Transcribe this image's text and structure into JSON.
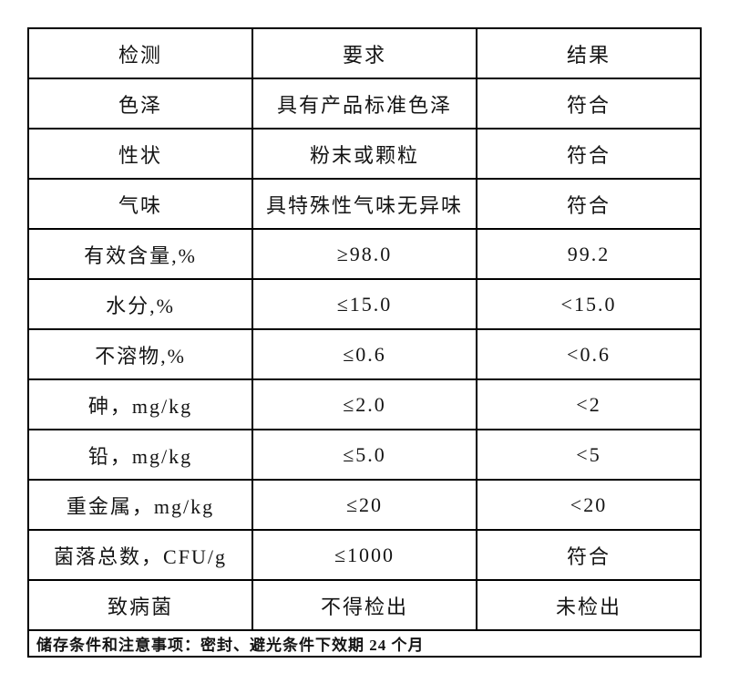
{
  "table": {
    "headers": [
      "检测",
      "要求",
      "结果"
    ],
    "rows": [
      {
        "test": "色泽",
        "requirement": "具有产品标准色泽",
        "result": "符合"
      },
      {
        "test": "性状",
        "requirement": "粉末或颗粒",
        "result": "符合"
      },
      {
        "test": "气味",
        "requirement": "具特殊性气味无异味",
        "result": "符合"
      },
      {
        "test": "有效含量,%",
        "requirement": "≥98.0",
        "result": "99.2"
      },
      {
        "test": "水分,%",
        "requirement": "≤15.0",
        "result": "<15.0"
      },
      {
        "test": "不溶物,%",
        "requirement": "≤0.6",
        "result": "<0.6"
      },
      {
        "test": "砷，mg/kg",
        "requirement": "≤2.0",
        "result": "<2"
      },
      {
        "test": "铅，mg/kg",
        "requirement": "≤5.0",
        "result": "<5"
      },
      {
        "test": "重金属，mg/kg",
        "requirement": "≤20",
        "result": "<20"
      },
      {
        "test": "菌落总数，CFU/g",
        "requirement": "≤1000",
        "result": "符合"
      },
      {
        "test": "致病菌",
        "requirement": "不得检出",
        "result": "未检出"
      }
    ],
    "footer_note": "储存条件和注意事项：密封、避光条件下效期 24 个月"
  },
  "colors": {
    "border": "#000000",
    "text": "#141414",
    "background": "#ffffff"
  }
}
